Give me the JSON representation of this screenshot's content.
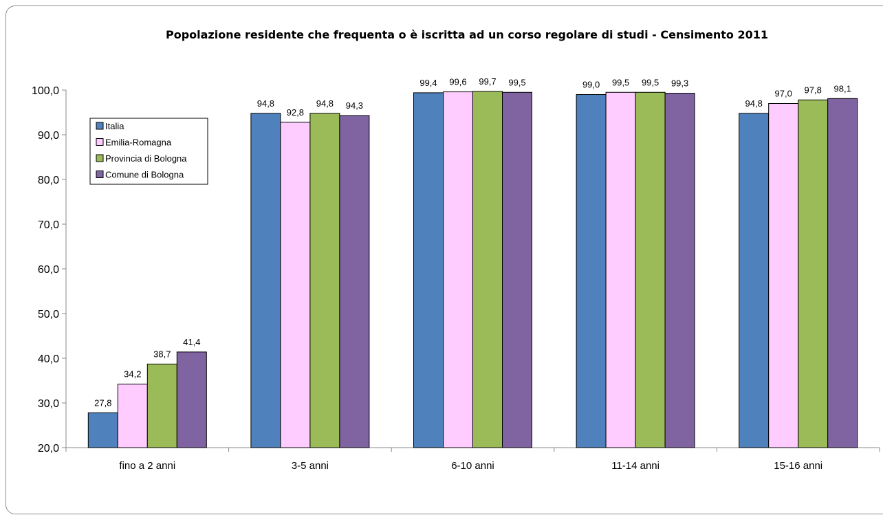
{
  "chart_data": {
    "type": "bar",
    "title": "Popolazione residente che frequenta o è iscritta ad un corso regolare di studi  -  Censimento 2011",
    "xlabel": "",
    "ylabel": "",
    "ylim": [
      20,
      100
    ],
    "yticks": [
      "20,0",
      "30,0",
      "40,0",
      "50,0",
      "60,0",
      "70,0",
      "80,0",
      "90,0",
      "100,0"
    ],
    "categories": [
      "fino a 2 anni",
      "3-5 anni",
      "6-10 anni",
      "11-14 anni",
      "15-16 anni"
    ],
    "series": [
      {
        "name": "Italia",
        "color": "#4f81bd",
        "values": [
          27.8,
          94.8,
          99.4,
          99.0,
          94.8
        ],
        "labels": [
          "27,8",
          "94,8",
          "99,4",
          "99,0",
          "94,8"
        ]
      },
      {
        "name": "Emilia-Romagna",
        "color": "#ffccff",
        "values": [
          34.2,
          92.8,
          99.6,
          99.5,
          97.0
        ],
        "labels": [
          "34,2",
          "92,8",
          "99,6",
          "99,5",
          "97,0"
        ]
      },
      {
        "name": "Provincia di Bologna",
        "color": "#9bbb59",
        "values": [
          38.7,
          94.8,
          99.7,
          99.5,
          97.8
        ],
        "labels": [
          "38,7",
          "94,8",
          "99,7",
          "99,5",
          "97,8"
        ]
      },
      {
        "name": "Comune di Bologna",
        "color": "#8064a2",
        "values": [
          41.4,
          94.3,
          99.5,
          99.3,
          98.1
        ],
        "labels": [
          "41,4",
          "94,3",
          "99,5",
          "99,3",
          "98,1"
        ]
      }
    ],
    "legend": "top-left",
    "grid": false
  }
}
